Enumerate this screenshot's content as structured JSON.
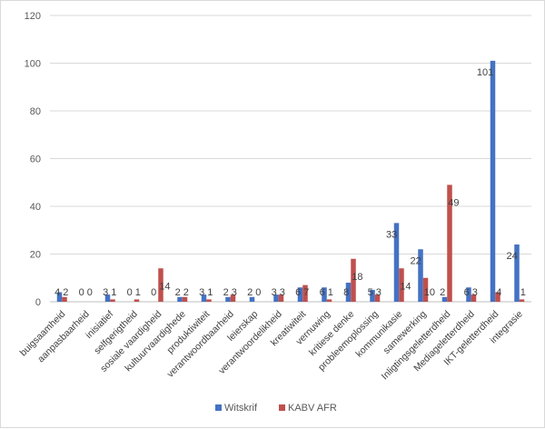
{
  "chart_data": {
    "type": "bar",
    "title": "",
    "xlabel": "",
    "ylabel": "",
    "ylim": [
      0,
      120
    ],
    "yticks": [
      0,
      20,
      40,
      60,
      80,
      100,
      120
    ],
    "grid": true,
    "legend_position": "bottom",
    "categories": [
      "buigsaamheid",
      "aanpasbaarheid",
      "inisiatief",
      "selfgerigtheid",
      "sosiale vaardigheid",
      "kultuurvaardighede",
      "produktiwiteit",
      "verantwoordbaarheid",
      "leierskap",
      "verantwoordelikheid",
      "kreatiwiteit",
      "vernuwing",
      "kritiese denke",
      "probleemoplossing",
      "kommunikasie",
      "samewerking",
      "Inligtingsgeletterdheid",
      "Mediageletterdheid",
      "IKT-geletterdheid",
      "integrasie"
    ],
    "series": [
      {
        "name": "Witskrif",
        "color": "#4472c4",
        "values": [
          4,
          0,
          3,
          0,
          0,
          2,
          3,
          2,
          2,
          3,
          6,
          6,
          8,
          5,
          33,
          22,
          2,
          6,
          101,
          24
        ],
        "labels": [
          "4",
          "0",
          "3",
          "0",
          "0",
          "2",
          "3",
          "2",
          "2",
          "3",
          "6",
          "6",
          "8",
          "5",
          "33",
          "22",
          "2",
          "6",
          "101",
          "24"
        ]
      },
      {
        "name": "KABV AFR",
        "color": "#c0504d",
        "values": [
          2,
          0,
          1,
          1,
          14,
          2,
          1,
          3,
          0,
          3,
          7,
          1,
          18,
          3,
          14,
          10,
          49,
          3,
          4,
          1
        ],
        "labels": [
          "2",
          "0",
          "1",
          "1",
          "14",
          "2",
          "1",
          "3",
          "0",
          "3",
          "7",
          "1",
          "18",
          "3",
          "14",
          "10",
          "49",
          "3",
          "4",
          "1"
        ]
      }
    ]
  }
}
